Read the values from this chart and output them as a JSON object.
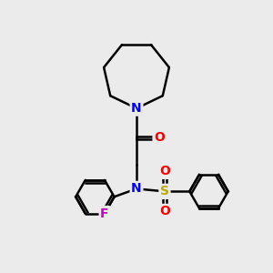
{
  "bg_color": "#ebebeb",
  "atom_colors": {
    "N": "#0000ff",
    "O": "#ff0000",
    "F": "#cc00cc",
    "S": "#bbaa00",
    "C": "#000000"
  },
  "bond_color": "#000000",
  "font_size_atom": 10,
  "fig_size": [
    3.0,
    3.0
  ],
  "dpi": 100
}
